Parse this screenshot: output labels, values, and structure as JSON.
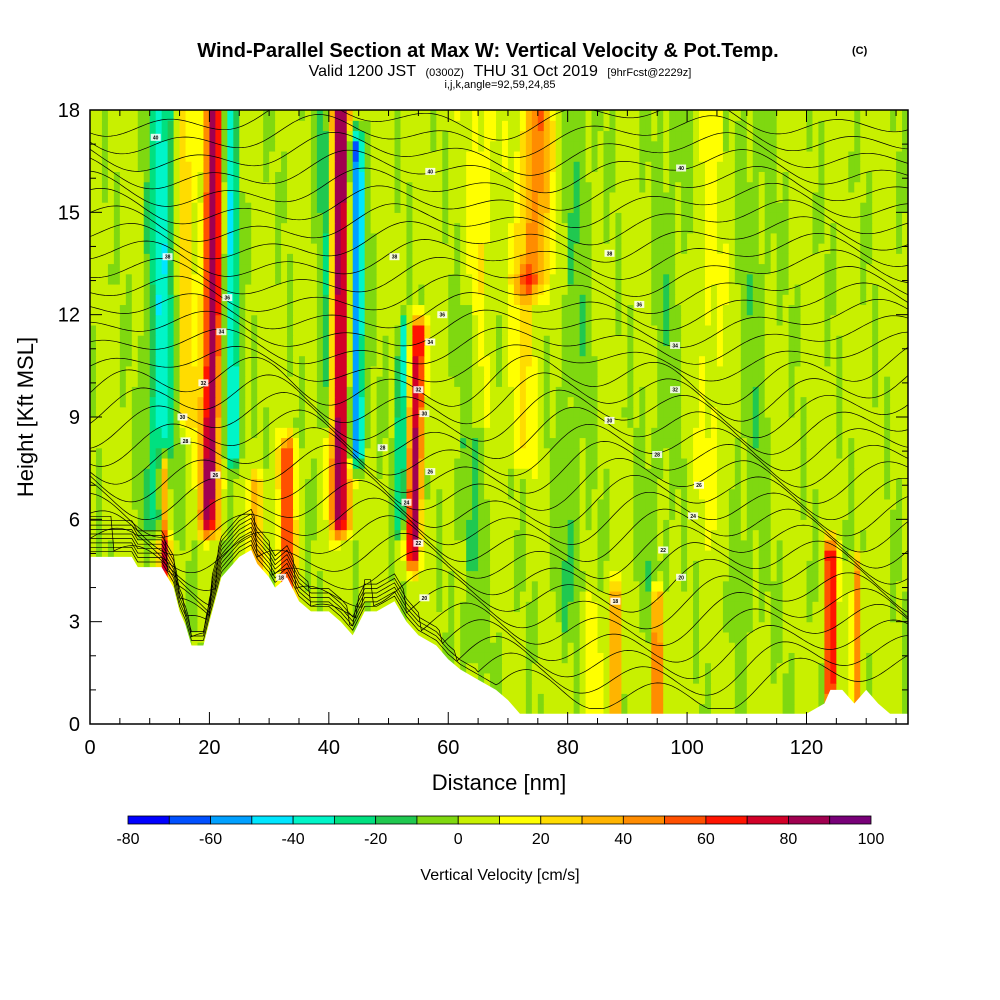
{
  "title": "Wind-Parallel Section at Max W: Vertical Velocity & Pot.Temp.",
  "title_mark": "(C)",
  "subtitle": {
    "part1": "Valid 1200 JST",
    "part2": "(0300Z)",
    "part3": "THU 31 Oct 2019",
    "part4": "[9hrFcst@2229z]"
  },
  "params": "i,j,k,angle=92,59,24,85",
  "chart_data": {
    "type": "heatmap",
    "title": "Wind-Parallel Section at Max W: Vertical Velocity & Pot.Temp.",
    "xlabel": "Distance [nm]",
    "ylabel": "Height [Kft MSL]",
    "xlim": [
      0,
      137
    ],
    "ylim": [
      0,
      18
    ],
    "x_ticks": [
      "0",
      "20",
      "40",
      "60",
      "80",
      "100",
      "120"
    ],
    "x_tick_values": [
      0,
      20,
      40,
      60,
      80,
      100,
      120
    ],
    "y_ticks": [
      "0",
      "3",
      "6",
      "9",
      "12",
      "15",
      "18"
    ],
    "y_tick_values": [
      0,
      3,
      6,
      9,
      12,
      15,
      18
    ],
    "background_value": 3,
    "plumes": [
      {
        "x0": 12,
        "x1": 12,
        "v": -40,
        "w": 2.2,
        "ylo": 6,
        "yhi": 18
      },
      {
        "x0": 20,
        "x1": 21,
        "v": 85,
        "w": 1.6,
        "ylo": 6,
        "yhi": 18
      },
      {
        "x0": 24,
        "x1": 23,
        "v": -45,
        "w": 1.4,
        "ylo": 8,
        "yhi": 18
      },
      {
        "x0": 16,
        "x1": 16,
        "v": 25,
        "w": 1.5,
        "ylo": 9,
        "yhi": 18
      },
      {
        "x0": 42,
        "x1": 42,
        "v": 90,
        "w": 1.6,
        "ylo": 6,
        "yhi": 18
      },
      {
        "x0": 44.5,
        "x1": 44.5,
        "v": -70,
        "w": 1.3,
        "ylo": 8,
        "yhi": 17
      },
      {
        "x0": 39.5,
        "x1": 39.5,
        "v": -25,
        "w": 1.2,
        "ylo": 9,
        "yhi": 18
      },
      {
        "x0": 54,
        "x1": 55,
        "v": 80,
        "w": 1.2,
        "ylo": 5,
        "yhi": 11.5
      },
      {
        "x0": 52,
        "x1": 52.5,
        "v": -40,
        "w": 1.0,
        "ylo": 6,
        "yhi": 11.5
      },
      {
        "x0": 74,
        "x1": 75,
        "v": 45,
        "w": 2.5,
        "ylo": 13,
        "yhi": 18
      },
      {
        "x0": 72,
        "x1": 73,
        "v": 18,
        "w": 2.5,
        "ylo": 8,
        "yhi": 13
      },
      {
        "x0": 12.5,
        "x1": 12.5,
        "v": 70,
        "w": 0.9,
        "ylo": 4.5,
        "yhi": 7.5
      },
      {
        "x0": 33,
        "x1": 33,
        "v": 55,
        "w": 1.4,
        "ylo": 4,
        "yhi": 8
      },
      {
        "x0": 28,
        "x1": 28,
        "v": 35,
        "w": 1.2,
        "ylo": 4.5,
        "yhi": 7
      },
      {
        "x0": 88,
        "x1": 88,
        "v": 55,
        "w": 0.8,
        "ylo": 0.4,
        "yhi": 3.8
      },
      {
        "x0": 95,
        "x1": 95,
        "v": 65,
        "w": 0.8,
        "ylo": 0.4,
        "yhi": 3.6
      },
      {
        "x0": 124,
        "x1": 124,
        "v": 85,
        "w": 0.8,
        "ylo": 1,
        "yhi": 5
      },
      {
        "x0": 128.5,
        "x1": 128.5,
        "v": 45,
        "w": 0.7,
        "ylo": 0.6,
        "yhi": 4.5
      },
      {
        "x0": 84,
        "x1": 84,
        "v": 12,
        "w": 1.5,
        "ylo": 0.3,
        "yhi": 3.2
      },
      {
        "x0": 64,
        "x1": 64,
        "v": -12,
        "w": 2.5,
        "ylo": 2,
        "yhi": 12
      },
      {
        "x0": 80,
        "x1": 82,
        "v": -10,
        "w": 2.5,
        "ylo": 3,
        "yhi": 18
      },
      {
        "x0": 94,
        "x1": 98,
        "v": -8,
        "w": 3,
        "ylo": 3,
        "yhi": 18
      },
      {
        "x0": 110,
        "x1": 112,
        "v": -8,
        "w": 3,
        "ylo": 3,
        "yhi": 18
      },
      {
        "x0": 65,
        "x1": 66,
        "v": 14,
        "w": 2,
        "ylo": 9,
        "yhi": 18
      },
      {
        "x0": 104,
        "x1": 104,
        "v": 10,
        "w": 2,
        "ylo": 6,
        "yhi": 18
      }
    ],
    "terrain": [
      [
        0,
        4.9
      ],
      [
        7,
        4.9
      ],
      [
        8,
        4.6
      ],
      [
        12,
        4.6
      ],
      [
        14,
        4.0
      ],
      [
        15,
        3.3
      ],
      [
        16,
        2.9
      ],
      [
        17,
        2.3
      ],
      [
        19,
        2.3
      ],
      [
        20,
        3.0
      ],
      [
        22,
        4.3
      ],
      [
        24,
        4.7
      ],
      [
        25,
        4.9
      ],
      [
        27,
        5.1
      ],
      [
        28,
        4.7
      ],
      [
        30,
        4.3
      ],
      [
        31,
        4.0
      ],
      [
        33,
        4.3
      ],
      [
        35,
        3.6
      ],
      [
        37,
        3.3
      ],
      [
        40,
        3.3
      ],
      [
        42,
        3.0
      ],
      [
        44,
        2.6
      ],
      [
        46,
        3.3
      ],
      [
        48,
        3.3
      ],
      [
        51,
        3.6
      ],
      [
        53,
        3.0
      ],
      [
        55,
        2.6
      ],
      [
        58,
        2.3
      ],
      [
        60,
        1.9
      ],
      [
        62,
        1.6
      ],
      [
        65,
        1.3
      ],
      [
        68,
        1.0
      ],
      [
        70,
        0.7
      ],
      [
        72,
        0.3
      ],
      [
        80,
        0.3
      ],
      [
        100,
        0.3
      ],
      [
        120,
        0.3
      ],
      [
        123,
        0.6
      ],
      [
        124,
        1.0
      ],
      [
        126,
        1.0
      ],
      [
        128,
        0.6
      ],
      [
        130,
        1.0
      ],
      [
        132,
        0.6
      ],
      [
        134,
        0.3
      ],
      [
        137,
        0.3
      ]
    ],
    "colorbar": {
      "label": "Vertical Velocity [cm/s]",
      "ticks": [
        "-80",
        "-60",
        "-40",
        "-20",
        "0",
        "20",
        "40",
        "60",
        "80",
        "100"
      ],
      "tick_values": [
        -80,
        -60,
        -40,
        -20,
        0,
        20,
        40,
        60,
        80,
        100
      ],
      "bins": [
        {
          "lo": -80,
          "hi": -70,
          "color": "#0000ff"
        },
        {
          "lo": -70,
          "hi": -60,
          "color": "#0050ff"
        },
        {
          "lo": -60,
          "hi": -50,
          "color": "#00a0ff"
        },
        {
          "lo": -50,
          "hi": -40,
          "color": "#00e6ff"
        },
        {
          "lo": -40,
          "hi": -30,
          "color": "#00f5c8"
        },
        {
          "lo": -30,
          "hi": -20,
          "color": "#00e080"
        },
        {
          "lo": -20,
          "hi": -10,
          "color": "#20c850"
        },
        {
          "lo": -10,
          "hi": 0,
          "color": "#7fd810"
        },
        {
          "lo": 0,
          "hi": 10,
          "color": "#c8f000"
        },
        {
          "lo": 10,
          "hi": 20,
          "color": "#ffff00"
        },
        {
          "lo": 20,
          "hi": 30,
          "color": "#ffdc00"
        },
        {
          "lo": 30,
          "hi": 40,
          "color": "#ffb400"
        },
        {
          "lo": 40,
          "hi": 50,
          "color": "#ff8c00"
        },
        {
          "lo": 50,
          "hi": 60,
          "color": "#ff5000"
        },
        {
          "lo": 60,
          "hi": 70,
          "color": "#ff1400"
        },
        {
          "lo": 70,
          "hi": 80,
          "color": "#d20028"
        },
        {
          "lo": 80,
          "hi": 90,
          "color": "#a00050"
        },
        {
          "lo": 90,
          "hi": 100,
          "color": "#780078"
        }
      ]
    },
    "contour_labels": [
      {
        "text": "40",
        "x": 11,
        "y": 17.2
      },
      {
        "text": "38",
        "x": 13,
        "y": 13.7
      },
      {
        "text": "36",
        "x": 23,
        "y": 12.5
      },
      {
        "text": "34",
        "x": 22,
        "y": 11.5
      },
      {
        "text": "32",
        "x": 19,
        "y": 10.0
      },
      {
        "text": "30",
        "x": 15.5,
        "y": 9.0
      },
      {
        "text": "28",
        "x": 16,
        "y": 8.3
      },
      {
        "text": "26",
        "x": 21,
        "y": 7.3
      },
      {
        "text": "40",
        "x": 57,
        "y": 16.2
      },
      {
        "text": "38",
        "x": 51,
        "y": 13.7
      },
      {
        "text": "36",
        "x": 59,
        "y": 12.0
      },
      {
        "text": "34",
        "x": 57,
        "y": 11.2
      },
      {
        "text": "32",
        "x": 55,
        "y": 9.8
      },
      {
        "text": "30",
        "x": 56,
        "y": 9.1
      },
      {
        "text": "28",
        "x": 49,
        "y": 8.1
      },
      {
        "text": "26",
        "x": 57,
        "y": 7.4
      },
      {
        "text": "24",
        "x": 53,
        "y": 6.5
      },
      {
        "text": "22",
        "x": 55,
        "y": 5.3
      },
      {
        "text": "20",
        "x": 56,
        "y": 3.7
      },
      {
        "text": "18",
        "x": 32,
        "y": 4.3
      },
      {
        "text": "40",
        "x": 99,
        "y": 16.3
      },
      {
        "text": "38",
        "x": 87,
        "y": 13.8
      },
      {
        "text": "36",
        "x": 92,
        "y": 12.3
      },
      {
        "text": "34",
        "x": 98,
        "y": 11.1
      },
      {
        "text": "32",
        "x": 98,
        "y": 9.8
      },
      {
        "text": "30",
        "x": 87,
        "y": 8.9
      },
      {
        "text": "28",
        "x": 95,
        "y": 7.9
      },
      {
        "text": "26",
        "x": 102,
        "y": 7.0
      },
      {
        "text": "24",
        "x": 101,
        "y": 6.1
      },
      {
        "text": "22",
        "x": 96,
        "y": 5.1
      },
      {
        "text": "20",
        "x": 99,
        "y": 4.3
      },
      {
        "text": "18",
        "x": 88,
        "y": 3.6
      }
    ]
  }
}
